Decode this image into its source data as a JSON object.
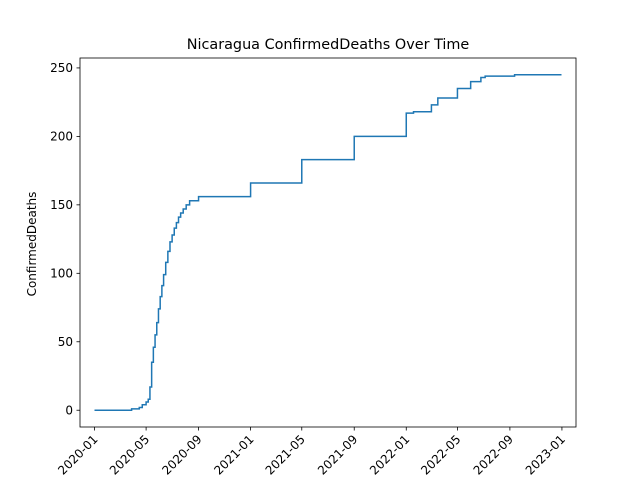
{
  "chart_data": {
    "type": "line",
    "title": "Nicaragua  ConfirmedDeaths Over Time",
    "xlabel": "",
    "ylabel": "ConfirmedDeaths",
    "ylim": [
      -12.25,
      257.25
    ],
    "xlim": [
      "2019-11-28",
      "2023-02-03"
    ],
    "grid": false,
    "legend": "none",
    "x_ticks": [
      "2020-01",
      "2020-05",
      "2020-09",
      "2021-01",
      "2021-05",
      "2021-09",
      "2022-01",
      "2022-05",
      "2022-09",
      "2023-01"
    ],
    "y_ticks": [
      0,
      50,
      100,
      150,
      200,
      250
    ],
    "series": [
      {
        "color": "#1f77b4",
        "points": [
          [
            "2020-01-01",
            0
          ],
          [
            "2020-03-28",
            1
          ],
          [
            "2020-04-15",
            2
          ],
          [
            "2020-04-22",
            4
          ],
          [
            "2020-05-01",
            6
          ],
          [
            "2020-05-06",
            8
          ],
          [
            "2020-05-10",
            17
          ],
          [
            "2020-05-14",
            35
          ],
          [
            "2020-05-18",
            46
          ],
          [
            "2020-05-22",
            55
          ],
          [
            "2020-05-26",
            64
          ],
          [
            "2020-05-30",
            74
          ],
          [
            "2020-06-03",
            83
          ],
          [
            "2020-06-07",
            91
          ],
          [
            "2020-06-11",
            99
          ],
          [
            "2020-06-16",
            108
          ],
          [
            "2020-06-21",
            116
          ],
          [
            "2020-06-26",
            123
          ],
          [
            "2020-07-01",
            128
          ],
          [
            "2020-07-06",
            133
          ],
          [
            "2020-07-11",
            137
          ],
          [
            "2020-07-16",
            141
          ],
          [
            "2020-07-21",
            144
          ],
          [
            "2020-07-27",
            147
          ],
          [
            "2020-08-03",
            150
          ],
          [
            "2020-08-11",
            153
          ],
          [
            "2020-09-01",
            156
          ],
          [
            "2021-01-01",
            166
          ],
          [
            "2021-05-01",
            183
          ],
          [
            "2021-09-01",
            200
          ],
          [
            "2022-01-01",
            217
          ],
          [
            "2022-01-18",
            218
          ],
          [
            "2022-03-01",
            223
          ],
          [
            "2022-03-16",
            228
          ],
          [
            "2022-05-01",
            235
          ],
          [
            "2022-06-01",
            240
          ],
          [
            "2022-06-25",
            243
          ],
          [
            "2022-07-05",
            244
          ],
          [
            "2022-09-10",
            244
          ],
          [
            "2022-09-12",
            245
          ],
          [
            "2022-12-31",
            245
          ]
        ]
      }
    ]
  }
}
